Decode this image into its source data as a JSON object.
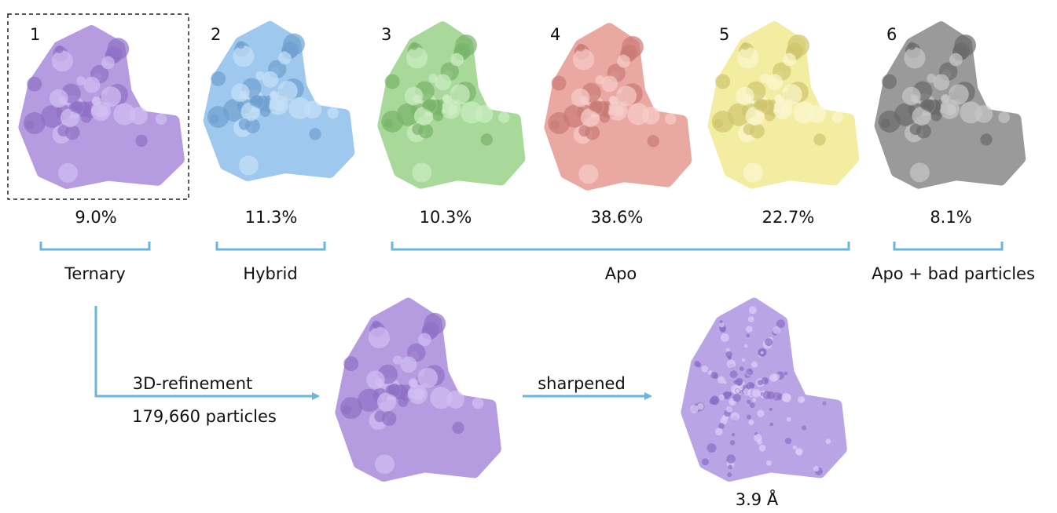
{
  "classes": [
    {
      "number": "1",
      "percent": "9.0%"
    },
    {
      "number": "2",
      "percent": "11.3%"
    },
    {
      "number": "3",
      "percent": "10.3%"
    },
    {
      "number": "4",
      "percent": "38.6%"
    },
    {
      "number": "5",
      "percent": "22.7%"
    },
    {
      "number": "6",
      "percent": "8.1%"
    }
  ],
  "groups": [
    {
      "label": "Ternary"
    },
    {
      "label": "Hybrid"
    },
    {
      "label": "Apo"
    },
    {
      "label": "Apo + bad particles"
    }
  ],
  "refinement": {
    "step": "3D-refinement",
    "particles": "179,660 particles"
  },
  "sharpening": {
    "step": "sharpened",
    "resolution": "3.9 Å"
  }
}
